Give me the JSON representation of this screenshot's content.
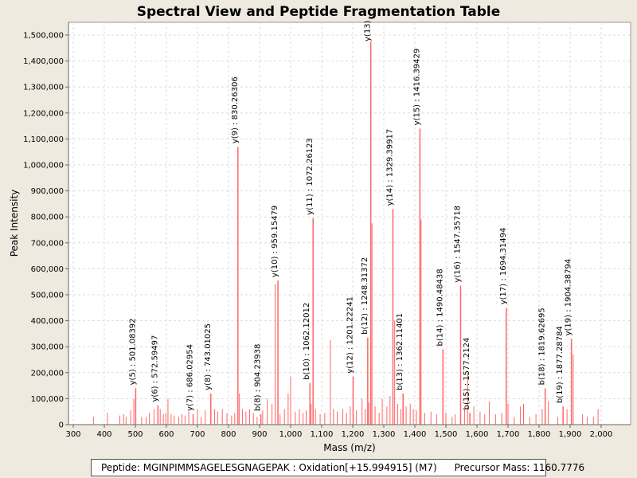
{
  "chart_data": {
    "type": "bar",
    "title": "Spectral View and Peptide Fragmentation Table",
    "xlabel": "Mass (m/z)",
    "ylabel": "Peak Intensity",
    "xlim": [
      282,
      2030
    ],
    "ylim": [
      0,
      1550000
    ],
    "x_ticks": [
      300,
      400,
      500,
      600,
      700,
      800,
      900,
      1000,
      1100,
      1200,
      1300,
      1400,
      1500,
      1600,
      1700,
      1800,
      1900,
      2000
    ],
    "x_tick_labels": [
      "300",
      "400",
      "500",
      "600",
      "700",
      "800",
      "900",
      "1,000",
      "1,100",
      "1,200",
      "1,300",
      "1,400",
      "1,500",
      "1,600",
      "1,700",
      "1,800",
      "1,900",
      "2,000"
    ],
    "y_ticks": [
      0,
      100000,
      200000,
      300000,
      400000,
      500000,
      600000,
      700000,
      800000,
      900000,
      1000000,
      1100000,
      1200000,
      1300000,
      1400000,
      1500000
    ],
    "y_tick_labels": [
      "0",
      "100,000",
      "200,000",
      "300,000",
      "400,000",
      "500,000",
      "600,000",
      "700,000",
      "800,000",
      "900,000",
      "1,000,000",
      "1,100,000",
      "1,200,000",
      "1,300,000",
      "1,400,000",
      "1,500,000"
    ],
    "annotated_peaks": [
      {
        "mz": 501.08392,
        "intensity": 140000,
        "label": "y(5) : 501.08392"
      },
      {
        "mz": 572.59497,
        "intensity": 75000,
        "label": "y(6) : 572.59497"
      },
      {
        "mz": 686.02954,
        "intensity": 40000,
        "label": "y(7) : 686.02954"
      },
      {
        "mz": 743.01025,
        "intensity": 120000,
        "label": "y(8) : 743.01025"
      },
      {
        "mz": 830.26306,
        "intensity": 1070000,
        "label": "y(9) : 830.26306"
      },
      {
        "mz": 904.23938,
        "intensity": 40000,
        "label": "b(8) : 904.23938"
      },
      {
        "mz": 959.15479,
        "intensity": 555000,
        "label": "y(10) : 959.15479"
      },
      {
        "mz": 1062.12012,
        "intensity": 160000,
        "label": "b(10) : 1062.12012"
      },
      {
        "mz": 1072.26123,
        "intensity": 795000,
        "label": "y(11) : 1072.26123"
      },
      {
        "mz": 1201.22241,
        "intensity": 185000,
        "label": "y(12) : 1201.22241"
      },
      {
        "mz": 1248.31372,
        "intensity": 335000,
        "label": "b(12) : 1248.31372"
      },
      {
        "mz": 1258.1,
        "intensity": 1475000,
        "label": "y(13)"
      },
      {
        "mz": 1329.39917,
        "intensity": 830000,
        "label": "y(14) : 1329.39917"
      },
      {
        "mz": 1362.11401,
        "intensity": 120000,
        "label": "b(13) : 1362.11401"
      },
      {
        "mz": 1416.39429,
        "intensity": 1140000,
        "label": "y(15) : 1416.39429"
      },
      {
        "mz": 1490.48438,
        "intensity": 290000,
        "label": "b(14) : 1490.48438"
      },
      {
        "mz": 1547.35718,
        "intensity": 535000,
        "label": "y(16) : 1547.35718"
      },
      {
        "mz": 1577.2124,
        "intensity": 45000,
        "label": "b(15) : 1577.2124"
      },
      {
        "mz": 1694.31494,
        "intensity": 450000,
        "label": "y(17) : 1694.31494"
      },
      {
        "mz": 1819.62695,
        "intensity": 140000,
        "label": "b(18) : 1819.62695"
      },
      {
        "mz": 1877.28784,
        "intensity": 70000,
        "label": "b(19) : 1877.28784"
      },
      {
        "mz": 1904.38794,
        "intensity": 330000,
        "label": "y(19) : 1904.38794"
      }
    ],
    "other_peaks": [
      [
        365,
        30000
      ],
      [
        410,
        45000
      ],
      [
        450,
        35000
      ],
      [
        462,
        40000
      ],
      [
        470,
        30000
      ],
      [
        485,
        55000
      ],
      [
        495,
        100000
      ],
      [
        520,
        30000
      ],
      [
        535,
        30000
      ],
      [
        545,
        45000
      ],
      [
        560,
        60000
      ],
      [
        580,
        60000
      ],
      [
        590,
        40000
      ],
      [
        598,
        45000
      ],
      [
        605,
        100000
      ],
      [
        615,
        40000
      ],
      [
        625,
        35000
      ],
      [
        640,
        30000
      ],
      [
        650,
        40000
      ],
      [
        660,
        35000
      ],
      [
        672,
        50000
      ],
      [
        700,
        60000
      ],
      [
        712,
        30000
      ],
      [
        725,
        55000
      ],
      [
        755,
        60000
      ],
      [
        765,
        50000
      ],
      [
        780,
        60000
      ],
      [
        795,
        45000
      ],
      [
        810,
        35000
      ],
      [
        820,
        45000
      ],
      [
        835,
        120000
      ],
      [
        845,
        60000
      ],
      [
        856,
        50000
      ],
      [
        868,
        60000
      ],
      [
        880,
        45000
      ],
      [
        892,
        30000
      ],
      [
        910,
        55000
      ],
      [
        925,
        100000
      ],
      [
        940,
        80000
      ],
      [
        950,
        540000
      ],
      [
        966,
        40000
      ],
      [
        980,
        60000
      ],
      [
        992,
        120000
      ],
      [
        1000,
        185000
      ],
      [
        1015,
        50000
      ],
      [
        1028,
        60000
      ],
      [
        1040,
        45000
      ],
      [
        1050,
        55000
      ],
      [
        1066,
        80000
      ],
      [
        1080,
        60000
      ],
      [
        1095,
        40000
      ],
      [
        1110,
        45000
      ],
      [
        1128,
        325000
      ],
      [
        1138,
        60000
      ],
      [
        1150,
        50000
      ],
      [
        1168,
        60000
      ],
      [
        1180,
        45000
      ],
      [
        1192,
        70000
      ],
      [
        1212,
        55000
      ],
      [
        1230,
        100000
      ],
      [
        1240,
        60000
      ],
      [
        1252,
        85000
      ],
      [
        1262,
        775000
      ],
      [
        1272,
        70000
      ],
      [
        1285,
        45000
      ],
      [
        1295,
        100000
      ],
      [
        1310,
        70000
      ],
      [
        1320,
        110000
      ],
      [
        1335,
        400000
      ],
      [
        1345,
        80000
      ],
      [
        1355,
        60000
      ],
      [
        1372,
        70000
      ],
      [
        1385,
        80000
      ],
      [
        1395,
        60000
      ],
      [
        1405,
        55000
      ],
      [
        1420,
        790000
      ],
      [
        1432,
        45000
      ],
      [
        1452,
        50000
      ],
      [
        1470,
        40000
      ],
      [
        1500,
        45000
      ],
      [
        1520,
        30000
      ],
      [
        1530,
        40000
      ],
      [
        1560,
        60000
      ],
      [
        1570,
        200000
      ],
      [
        1590,
        70000
      ],
      [
        1610,
        50000
      ],
      [
        1625,
        40000
      ],
      [
        1640,
        90000
      ],
      [
        1660,
        40000
      ],
      [
        1680,
        45000
      ],
      [
        1700,
        80000
      ],
      [
        1720,
        30000
      ],
      [
        1740,
        70000
      ],
      [
        1750,
        80000
      ],
      [
        1770,
        30000
      ],
      [
        1790,
        40000
      ],
      [
        1810,
        60000
      ],
      [
        1830,
        90000
      ],
      [
        1860,
        30000
      ],
      [
        1890,
        60000
      ],
      [
        1910,
        270000
      ],
      [
        1940,
        40000
      ],
      [
        1955,
        30000
      ],
      [
        1975,
        30000
      ],
      [
        1990,
        60000
      ]
    ],
    "grid": true,
    "series_color": "#ff6666"
  },
  "footer": {
    "peptide": "Peptide: MGINPIMMSAGELESGNAGEPAK : Oxidation[+15.994915] (M7)",
    "precursor": "Precursor Mass: 1160.7776"
  }
}
